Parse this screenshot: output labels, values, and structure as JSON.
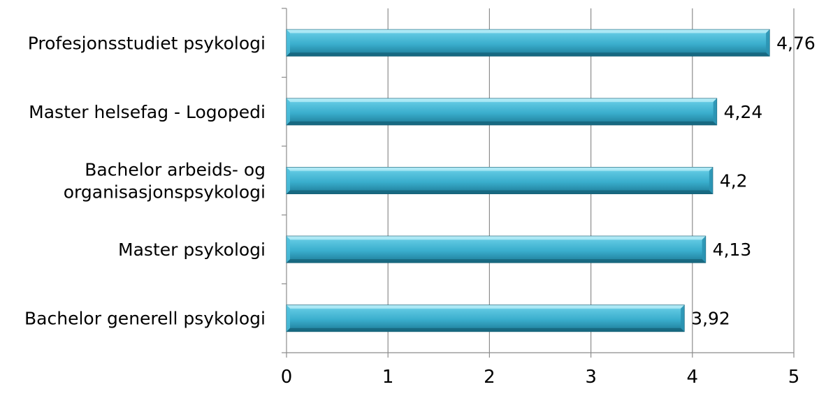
{
  "chart_data": {
    "type": "bar",
    "orientation": "horizontal",
    "categories": [
      [
        "Profesjonsstudiet psykologi"
      ],
      [
        "Master helsefag - Logopedi"
      ],
      [
        "Bachelor arbeids- og",
        "organisasjonspsykologi"
      ],
      [
        "Master psykologi"
      ],
      [
        "Bachelor generell psykologi"
      ]
    ],
    "values": [
      4.76,
      4.24,
      4.2,
      4.13,
      3.92
    ],
    "data_labels": [
      "4,76",
      "4,24",
      "4,2",
      "4,13",
      "3,92"
    ],
    "xticks": [
      0,
      1,
      2,
      3,
      4,
      5
    ],
    "xtick_labels": [
      "0",
      "1",
      "2",
      "3",
      "4",
      "5"
    ],
    "xlim": [
      0,
      5
    ],
    "title": "",
    "xlabel": "",
    "ylabel": "",
    "grid": "vertical",
    "legend": "none",
    "colors": {
      "bar_light": "#7fd8ec",
      "bar_mid": "#3fb3d3",
      "bar_dark": "#1f7f9c",
      "bar_edge": "#155f75",
      "grid": "#8c8c8c",
      "axis": "#8c8c8c"
    }
  }
}
